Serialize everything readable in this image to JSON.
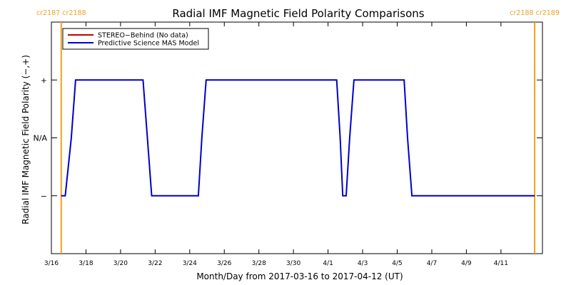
{
  "chart_data": {
    "type": "line",
    "title": "Radial IMF Magnetic Field Polarity Comparisons",
    "xlabel": "Month/Day from 2017-03-16 to 2017-04-12 (UT)",
    "ylabel": "Radial IMF Magnetic Field Polarity (−,+)",
    "x_unit": "days from 2017-03-16",
    "xlim": [
      0,
      28.4
    ],
    "ylim": [
      -2,
      2
    ],
    "grid": false,
    "legend_position": "top-left",
    "x_ticks": [
      {
        "x": 0,
        "label": "3/16"
      },
      {
        "x": 2,
        "label": "3/18"
      },
      {
        "x": 4,
        "label": "3/20"
      },
      {
        "x": 6,
        "label": "3/22"
      },
      {
        "x": 8,
        "label": "3/24"
      },
      {
        "x": 10,
        "label": "3/26"
      },
      {
        "x": 12,
        "label": "3/28"
      },
      {
        "x": 14,
        "label": "3/30"
      },
      {
        "x": 16,
        "label": "4/1"
      },
      {
        "x": 18,
        "label": "4/3"
      },
      {
        "x": 20,
        "label": "4/5"
      },
      {
        "x": 22,
        "label": "4/7"
      },
      {
        "x": 24,
        "label": "4/9"
      },
      {
        "x": 26,
        "label": "4/11"
      }
    ],
    "y_ticks": [
      {
        "y": 1,
        "label": "+"
      },
      {
        "y": 0,
        "label": "N/A"
      },
      {
        "y": -1,
        "label": "−"
      }
    ],
    "carrington_markers": [
      {
        "x": 0.57,
        "left_label": "cr2187",
        "right_label": "cr2188",
        "side": "left"
      },
      {
        "x": 27.95,
        "left_label": "cr2188",
        "right_label": "cr2189",
        "side": "right"
      }
    ],
    "marker_color": "#f0a020",
    "series": [
      {
        "name": "STEREO−Behind (No data)",
        "color": "#c00000",
        "x": [],
        "y": []
      },
      {
        "name": "Predictive Science MAS Model",
        "color": "#0000c8",
        "x": [
          0.57,
          0.8,
          1.15,
          1.4,
          5.3,
          5.55,
          5.8,
          8.5,
          8.7,
          8.95,
          16.5,
          16.7,
          16.85,
          17.05,
          17.25,
          17.5,
          20.4,
          20.6,
          20.85,
          27.95
        ],
        "y": [
          -1,
          -1,
          0,
          1,
          1,
          0,
          -1,
          -1,
          0,
          1,
          1,
          0,
          -1,
          -1,
          0,
          1,
          1,
          0,
          -1,
          -1
        ]
      }
    ]
  }
}
